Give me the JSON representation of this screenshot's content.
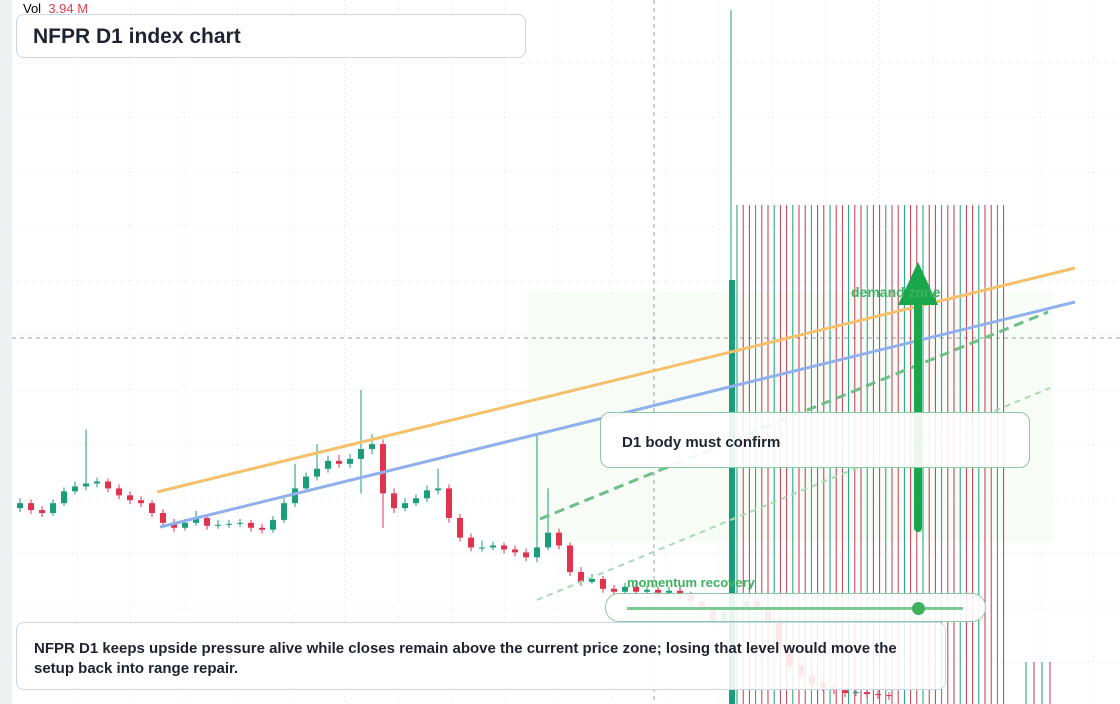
{
  "header": {
    "vol_label": "Vol",
    "vol_value": "3.94 M",
    "title": "NFPR D1 index chart"
  },
  "annotations": {
    "demand_zone": "demand zone",
    "confirm": "D1 body must confirm",
    "momentum": "momentum recovery",
    "note": "NFPR D1 keeps upside pressure alive while closes remain above the current price zone; losing that level would move the setup back into range repair."
  },
  "candles": [
    [
      42,
      44,
      41.2,
      43
    ],
    [
      43,
      43.8,
      40.8,
      41.6
    ],
    [
      41.6,
      42.4,
      40.2,
      41
    ],
    [
      41,
      43.8,
      40.4,
      43
    ],
    [
      43,
      46.2,
      42.4,
      45.4
    ],
    [
      45.4,
      47.4,
      44.8,
      46.4
    ],
    [
      46.4,
      58,
      45.6,
      47
    ],
    [
      47,
      48.2,
      46.2,
      47.4
    ],
    [
      47.4,
      48,
      45.2,
      46
    ],
    [
      46,
      46.8,
      43.8,
      44.6
    ],
    [
      44.6,
      45.4,
      42.8,
      43.6
    ],
    [
      43.6,
      44.4,
      42.2,
      43
    ],
    [
      43,
      43.6,
      40.2,
      41
    ],
    [
      41,
      41.8,
      38.2,
      39
    ],
    [
      39,
      39.8,
      37.2,
      38
    ],
    [
      38,
      39.8,
      37.4,
      39
    ],
    [
      39,
      41.4,
      38.4,
      40
    ],
    [
      40,
      40.8,
      37.6,
      38.4
    ],
    [
      38.4,
      39.6,
      37.8,
      38.6
    ],
    [
      38.6,
      39.6,
      38,
      38.8
    ],
    [
      38.8,
      39.8,
      38.2,
      39
    ],
    [
      39,
      39.6,
      37.2,
      38
    ],
    [
      38,
      38.8,
      36.8,
      37.6
    ],
    [
      37.6,
      40.4,
      37,
      39.6
    ],
    [
      39.6,
      44,
      39,
      43
    ],
    [
      43,
      51,
      42.2,
      46
    ],
    [
      46,
      49.2,
      45.2,
      48.4
    ],
    [
      48.4,
      55,
      47.6,
      50
    ],
    [
      50,
      52.6,
      49.2,
      51.6
    ],
    [
      51.6,
      52.8,
      50.2,
      51
    ],
    [
      51,
      53,
      50.2,
      52
    ],
    [
      52,
      66,
      45,
      54
    ],
    [
      54,
      57,
      53,
      55
    ],
    [
      55,
      56,
      38,
      45
    ],
    [
      45,
      46,
      41,
      42
    ],
    [
      42,
      44,
      41.4,
      43
    ],
    [
      43,
      44.8,
      42.4,
      44
    ],
    [
      44,
      46.6,
      43.2,
      45.6
    ],
    [
      45.6,
      50,
      44.8,
      46
    ],
    [
      46,
      46.8,
      39,
      40
    ],
    [
      40,
      40.8,
      35.2,
      36
    ],
    [
      36,
      36.8,
      33.2,
      34
    ],
    [
      34,
      35.4,
      33.2,
      34
    ],
    [
      34,
      35.2,
      33.4,
      34.4
    ],
    [
      34.4,
      35,
      32.8,
      33.6
    ],
    [
      33.6,
      34.4,
      32.2,
      33
    ],
    [
      33,
      33.8,
      31.2,
      32
    ],
    [
      32,
      57,
      31,
      34
    ],
    [
      34,
      46,
      33.4,
      37
    ],
    [
      37,
      37.8,
      33.6,
      34.4
    ],
    [
      34.4,
      35,
      28.2,
      29
    ],
    [
      29,
      30,
      26.2,
      27
    ],
    [
      27,
      28.6,
      26.6,
      27.6
    ],
    [
      27.6,
      28.2,
      24.8,
      25.6
    ],
    [
      25.6,
      26.4,
      24.2,
      25
    ],
    [
      25,
      26.8,
      24.4,
      26
    ],
    [
      26,
      26.8,
      24.2,
      25
    ],
    [
      25,
      26.2,
      24.4,
      25.4
    ],
    [
      25.4,
      26,
      24,
      24.8
    ],
    [
      24.8,
      26,
      24.2,
      25.2
    ],
    [
      25.2,
      26,
      23.6,
      24.4
    ],
    [
      24.4,
      25,
      22.2,
      23
    ],
    [
      23,
      23.8,
      20.8,
      21.6
    ],
    [
      21.6,
      22.4,
      18.2,
      19
    ],
    [
      19,
      21.8,
      18.4,
      21
    ],
    [
      21,
      22.8,
      20.4,
      22
    ],
    [
      22,
      23.8,
      21.4,
      23
    ],
    [
      23,
      23.8,
      20.8,
      21.6
    ],
    [
      21.6,
      22.4,
      18.2,
      19
    ],
    [
      19,
      19.8,
      13.2,
      14
    ],
    [
      14,
      14.8,
      9.2,
      10
    ],
    [
      10,
      10.8,
      7.2,
      8
    ],
    [
      8,
      8.8,
      5.6,
      6.4
    ],
    [
      6.4,
      7.2,
      4.8,
      5.6
    ],
    [
      5.6,
      6.4,
      4.2,
      5
    ],
    [
      5,
      5.8,
      3.6,
      4.4
    ],
    [
      4.4,
      5.4,
      3.8,
      4.6
    ],
    [
      4.6,
      5.2,
      3.4,
      4.2
    ],
    [
      4.2,
      5,
      3.2,
      4
    ],
    [
      4,
      4.6,
      3,
      3.8
    ]
  ]
}
